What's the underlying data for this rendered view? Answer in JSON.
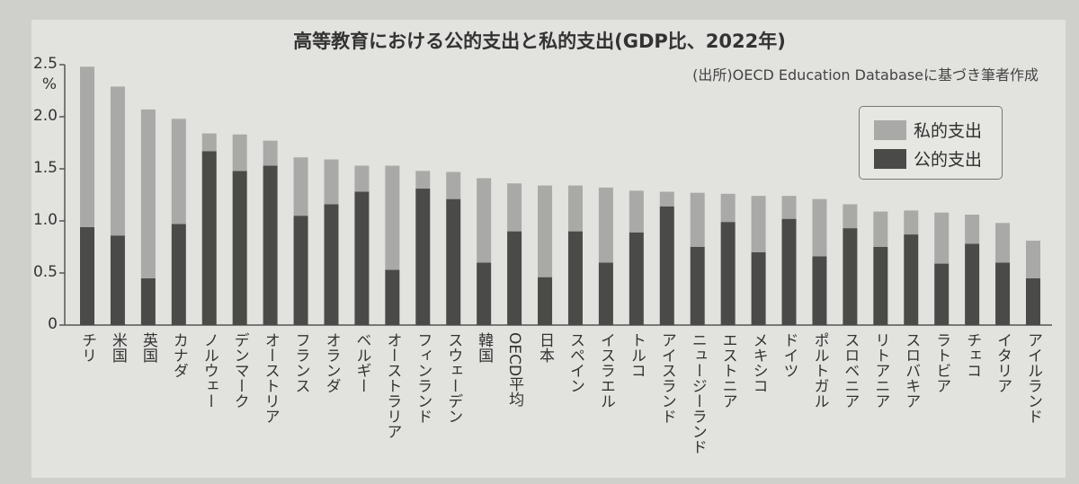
{
  "chart_data": {
    "type": "bar",
    "stacked": true,
    "title": "高等教育における公的支出と私的支出(GDP比、2022年)",
    "source": "(出所)OECD Education Databaseに基づき筆者作成",
    "ylabel": "%",
    "ylim": [
      0,
      2.5
    ],
    "yticks": [
      "0",
      "0.5",
      "1.0",
      "1.5",
      "2.0",
      "2.5"
    ],
    "legend_position": "top-right",
    "categories": [
      "チリ",
      "米国",
      "英国",
      "カナダ",
      "ノルウェー",
      "デンマーク",
      "オーストリア",
      "フランス",
      "オランダ",
      "ベルギー",
      "オーストラリア",
      "フィンランド",
      "スウェーデン",
      "韓国",
      "OECD平均",
      "日本",
      "スペイン",
      "イスラエル",
      "トルコ",
      "アイスランド",
      "ニュージーランド",
      "エストニア",
      "メキシコ",
      "ドイツ",
      "ポルトガル",
      "スロベニア",
      "リトアニア",
      "スロバキア",
      "ラトビア",
      "チェコ",
      "イタリア",
      "アイルランド"
    ],
    "series": [
      {
        "name": "公的支出",
        "color": "#4a4a48",
        "values": [
          0.94,
          0.86,
          0.45,
          0.97,
          1.67,
          1.48,
          1.53,
          1.05,
          1.16,
          1.28,
          0.53,
          1.31,
          1.21,
          0.6,
          0.9,
          0.46,
          0.9,
          0.6,
          0.89,
          1.14,
          0.75,
          0.99,
          0.7,
          1.02,
          0.66,
          0.93,
          0.75,
          0.87,
          0.59,
          0.78,
          0.6,
          0.45
        ]
      },
      {
        "name": "私的支出",
        "color": "#a9a9a7",
        "values": [
          1.54,
          1.43,
          1.62,
          1.01,
          0.17,
          0.35,
          0.24,
          0.56,
          0.43,
          0.25,
          1.0,
          0.17,
          0.26,
          0.81,
          0.46,
          0.88,
          0.44,
          0.72,
          0.4,
          0.14,
          0.52,
          0.27,
          0.54,
          0.22,
          0.55,
          0.23,
          0.34,
          0.23,
          0.49,
          0.28,
          0.38,
          0.36
        ]
      }
    ]
  }
}
